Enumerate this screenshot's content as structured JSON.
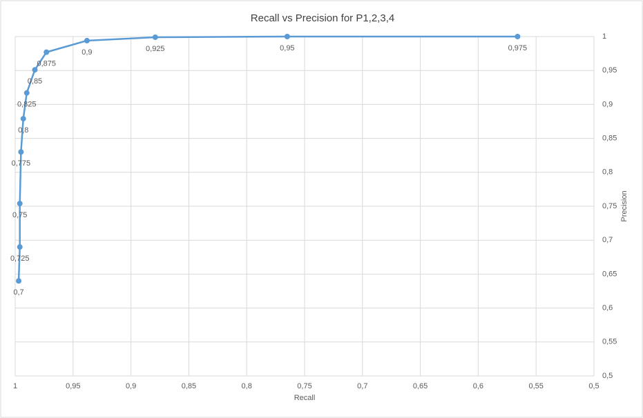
{
  "chart_data": {
    "type": "line",
    "title": "Recall vs Precision for P1,2,3,4",
    "x_label": "Recall",
    "y_label": "Precision",
    "y_axis_side": "right",
    "grid": true,
    "xlim": [
      1,
      0.5
    ],
    "ylim": [
      0.5,
      1
    ],
    "xticks": [
      1,
      {
        "value": 0.95,
        "label": "0,95"
      },
      {
        "value": 0.9,
        "label": "0,9"
      },
      {
        "value": 0.85,
        "label": "0,85"
      },
      {
        "value": 0.8,
        "label": "0,8"
      },
      {
        "value": 0.75,
        "label": "0,75"
      },
      {
        "value": 0.7,
        "label": "0,7"
      },
      {
        "value": 0.65,
        "label": "0,65"
      },
      {
        "value": 0.6,
        "label": "0,6"
      },
      {
        "value": 0.55,
        "label": "0,55"
      },
      {
        "value": 0.5,
        "label": "0,5"
      }
    ],
    "yticks": [
      {
        "value": 0.5,
        "label": "0,5"
      },
      {
        "value": 0.55,
        "label": "0,55"
      },
      {
        "value": 0.6,
        "label": "0,6"
      },
      {
        "value": 0.65,
        "label": "0,65"
      },
      {
        "value": 0.7,
        "label": "0,7"
      },
      {
        "value": 0.75,
        "label": "0,75"
      },
      {
        "value": 0.8,
        "label": "0,8"
      },
      {
        "value": 0.85,
        "label": "0,85"
      },
      {
        "value": 0.9,
        "label": "0,9"
      },
      {
        "value": 0.95,
        "label": "0,95"
      },
      1
    ],
    "series": [
      {
        "color": "#5b9bd5",
        "x": [
          0.997,
          0.996,
          0.996,
          0.995,
          0.993,
          0.99,
          0.983,
          0.973,
          0.938,
          0.879,
          0.765,
          0.566
        ],
        "values": [
          0.64,
          0.69,
          0.754,
          0.83,
          0.879,
          0.917,
          0.951,
          0.977,
          0.994,
          0.999,
          1.0,
          1.0
        ],
        "point_labels": [
          "0,7",
          "0,725",
          "0,75",
          "0,775",
          "0,8",
          "0,825",
          "0,85",
          "0,875",
          "0,9",
          "0,925",
          "0,95",
          "0,975"
        ]
      }
    ]
  }
}
